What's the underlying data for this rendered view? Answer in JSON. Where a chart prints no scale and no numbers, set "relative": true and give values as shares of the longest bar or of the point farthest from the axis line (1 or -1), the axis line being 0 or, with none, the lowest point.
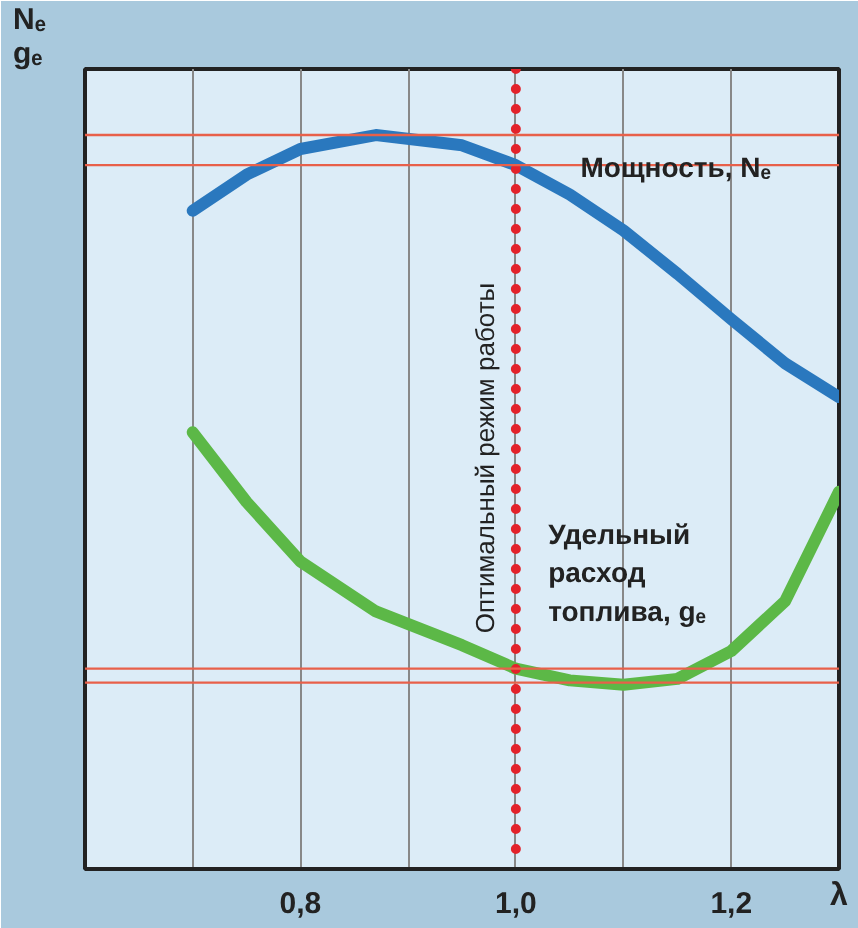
{
  "chart_data": {
    "type": "line",
    "relative": true,
    "xlabel": "λ",
    "ylabel": "Nₑ\ngₑ",
    "x": [
      0.7,
      0.75,
      0.8,
      0.87,
      0.95,
      1.0,
      1.05,
      1.1,
      1.15,
      1.2,
      1.25,
      1.3
    ],
    "xlim": [
      0.6,
      1.3
    ],
    "xticks": [
      {
        "value": 0.7,
        "label": null
      },
      {
        "value": 0.8,
        "label": "0,8"
      },
      {
        "value": 0.9,
        "label": null
      },
      {
        "value": 1.0,
        "label": "1,0"
      },
      {
        "value": 1.1,
        "label": null
      },
      {
        "value": 1.2,
        "label": "1,2"
      }
    ],
    "grid": "x",
    "legend": false,
    "marker": "none",
    "line_style": "solid",
    "series": [
      {
        "name": "Мощность, Nₑ",
        "color": "#2a78be",
        "values": [
          0.897,
          0.946,
          0.981,
          1.0,
          0.986,
          0.959,
          0.919,
          0.87,
          0.811,
          0.749,
          0.689,
          0.643
        ]
      },
      {
        "name": "Удельный расход топлива, gₑ",
        "color": "#5cb847",
        "values": [
          0.595,
          0.5,
          0.419,
          0.351,
          0.305,
          0.273,
          0.257,
          0.251,
          0.259,
          0.297,
          0.365,
          0.514
        ]
      }
    ],
    "ref_lines": [
      {
        "axis": "x",
        "value": 1.0,
        "label": "Оптимальный режим работы",
        "color": "#e3222a",
        "line_style": "dotted"
      },
      {
        "axis": "y",
        "value": 1.0,
        "label": null,
        "color": "#e8604a",
        "line_style": "solid"
      },
      {
        "axis": "y",
        "value": 0.959,
        "label": null,
        "color": "#e8604a",
        "line_style": "solid"
      },
      {
        "axis": "y",
        "value": 0.273,
        "label": null,
        "color": "#e8604a",
        "line_style": "solid"
      },
      {
        "axis": "y",
        "value": 0.254,
        "label": null,
        "color": "#e8604a",
        "line_style": "solid"
      }
    ]
  }
}
